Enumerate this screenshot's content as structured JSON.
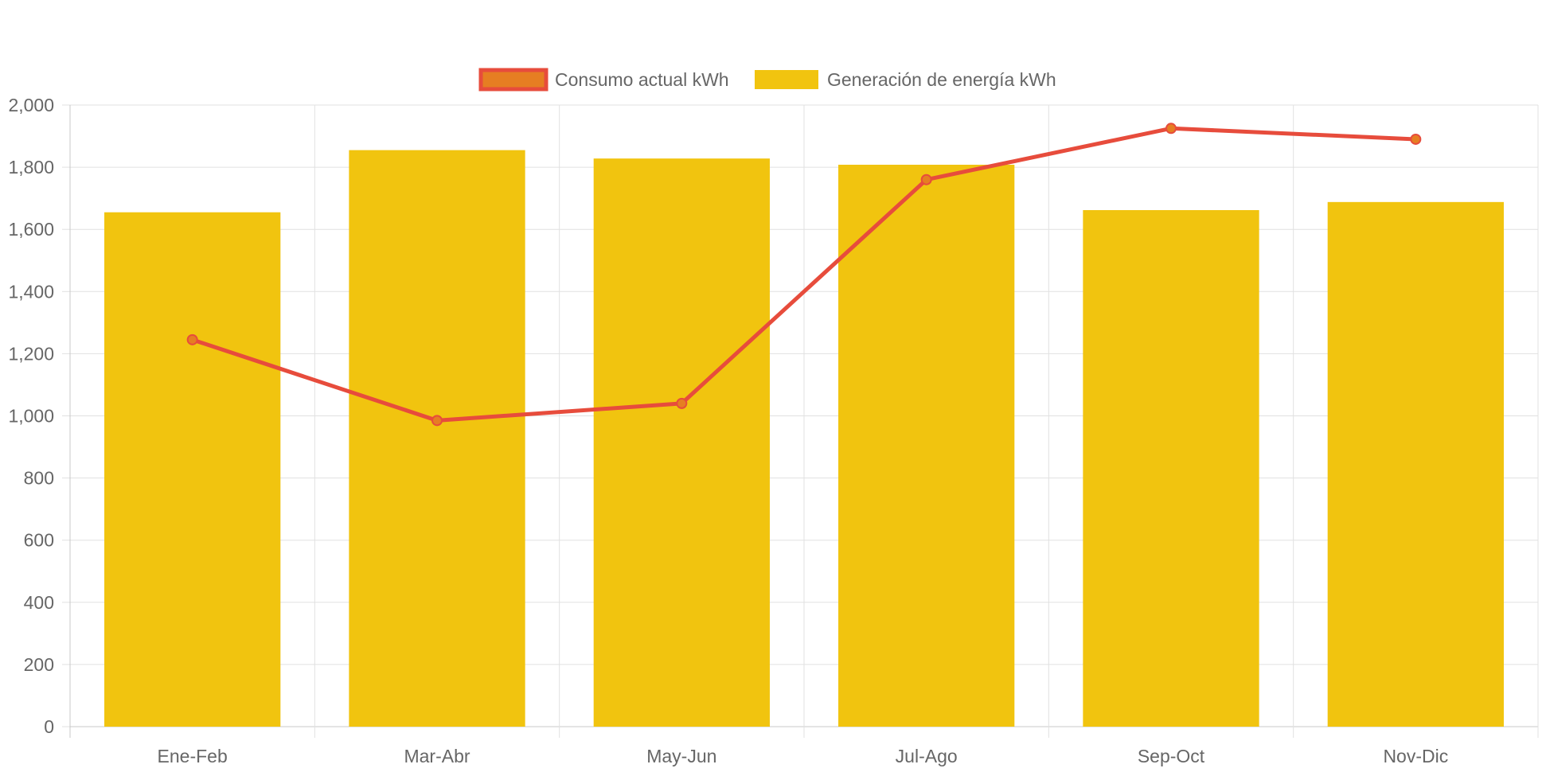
{
  "chart_data": {
    "type": "bar",
    "title": "",
    "xlabel": "",
    "ylabel": "",
    "categories": [
      "Ene-Feb",
      "Mar-Abr",
      "May-Jun",
      "Jul-Ago",
      "Sep-Oct",
      "Nov-Dic"
    ],
    "ylim": [
      0,
      2000
    ],
    "yticks": [
      0,
      200,
      400,
      600,
      800,
      1000,
      1200,
      1400,
      1600,
      1800,
      2000
    ],
    "ytick_labels": [
      "0",
      "200",
      "400",
      "600",
      "800",
      "1,000",
      "1,200",
      "1,400",
      "1,600",
      "1,800",
      "2,000"
    ],
    "grid": true,
    "legend_position": "top-center",
    "series": [
      {
        "name": "Consumo actual kWh",
        "type": "line",
        "color": "#e74c3c",
        "point_color": "#e67e22",
        "values": [
          1245,
          985,
          1040,
          1760,
          1925,
          1890
        ]
      },
      {
        "name": "Generación de energía kWh",
        "type": "bar",
        "color": "#f1c40f",
        "values": [
          1655,
          1855,
          1828,
          1808,
          1662,
          1688
        ]
      }
    ]
  }
}
